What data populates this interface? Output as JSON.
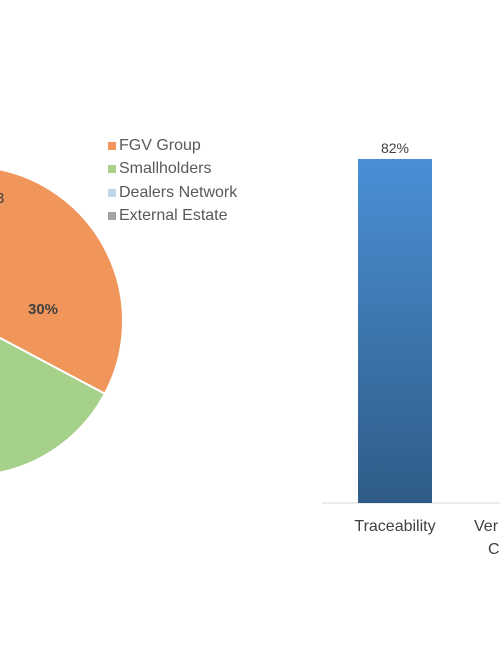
{
  "chart_data": [
    {
      "type": "pie",
      "labels": [
        "FGV Group",
        "Smallholders",
        "Dealers Network",
        "External Estate"
      ],
      "values": [
        30,
        25,
        null,
        null
      ],
      "data_labels": [
        "30%",
        "",
        "",
        "3"
      ],
      "colors": [
        "#F0965A",
        "#A6D18A",
        "#BDD7EE",
        "#A5A5A5"
      ],
      "legend": "top-right",
      "legend_labels": [
        "FGV Group",
        "Smallholders",
        "Dealers Network",
        "External Estate"
      ]
    },
    {
      "type": "bar",
      "categories": [
        "Traceability",
        "Ver"
      ],
      "category_label_lines": [
        [
          "Traceability"
        ],
        [
          "Ver",
          "C"
        ]
      ],
      "values": [
        82,
        null
      ],
      "data_labels": [
        "82%"
      ],
      "colors": {
        "bar_top": "#4A90D6",
        "bar_bottom": "#2F5B86"
      },
      "ylim": [
        0,
        100
      ]
    }
  ]
}
